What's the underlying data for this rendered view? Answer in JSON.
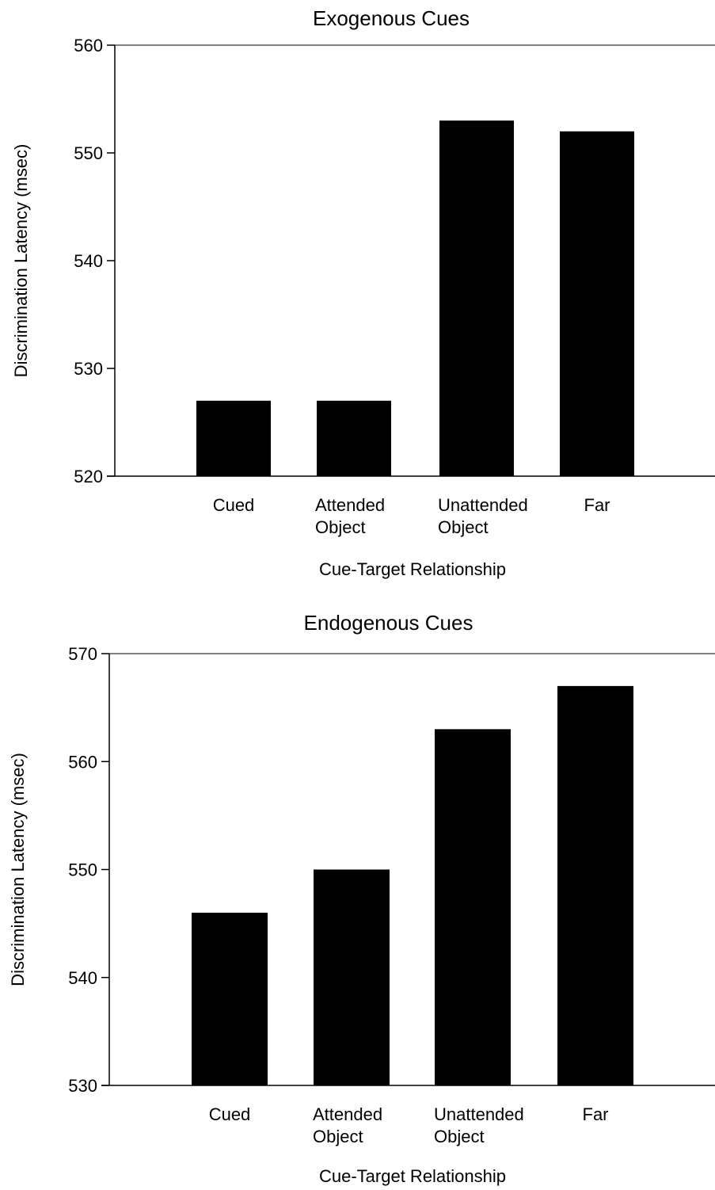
{
  "chart_data": [
    {
      "type": "bar",
      "title": "Exogenous Cues",
      "xlabel": "Cue-Target Relationship",
      "ylabel": "Discrimination Latency (msec)",
      "categories": [
        [
          "Cued"
        ],
        [
          "Attended",
          "Object"
        ],
        [
          "Unattended",
          "Object"
        ],
        [
          "Far"
        ]
      ],
      "values": [
        527,
        527,
        553,
        552
      ],
      "ylim": [
        520,
        560
      ],
      "yticks": [
        520,
        530,
        540,
        550,
        560
      ],
      "bar_color": "#000000",
      "grid": false
    },
    {
      "type": "bar",
      "title": "Endogenous Cues",
      "xlabel": "Cue-Target Relationship",
      "ylabel": "Discrimination Latency (msec)",
      "categories": [
        [
          "Cued"
        ],
        [
          "Attended",
          "Object"
        ],
        [
          "Unattended",
          "Object"
        ],
        [
          "Far"
        ]
      ],
      "values": [
        546,
        550,
        563,
        567
      ],
      "ylim": [
        530,
        570
      ],
      "yticks": [
        530,
        540,
        550,
        560,
        570
      ],
      "bar_color": "#000000",
      "grid": false
    }
  ]
}
